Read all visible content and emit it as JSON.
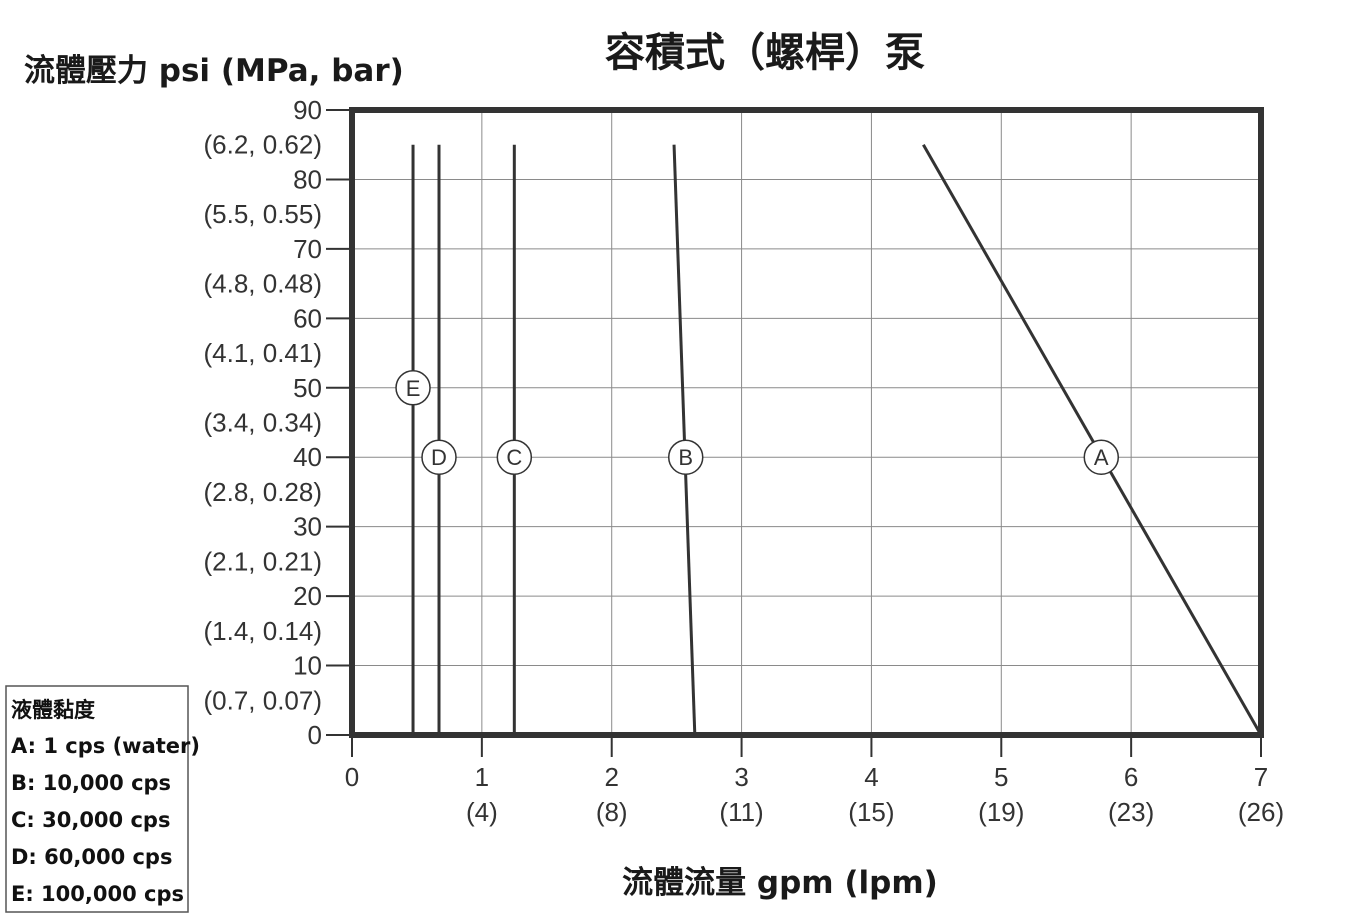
{
  "chart_data": {
    "type": "line",
    "title": "容積式（螺桿）泵",
    "xlabel": "流體流量 gpm (lpm)",
    "ylabel": "流體壓力 psi (MPa, bar)",
    "xlim": [
      0,
      7
    ],
    "ylim": [
      0,
      90
    ],
    "grid": true,
    "x_ticks": [
      {
        "value": 0,
        "label": "0",
        "sub": ""
      },
      {
        "value": 1,
        "label": "1",
        "sub": "(4)"
      },
      {
        "value": 2,
        "label": "2",
        "sub": "(8)"
      },
      {
        "value": 3,
        "label": "3",
        "sub": "(11)"
      },
      {
        "value": 4,
        "label": "4",
        "sub": "(15)"
      },
      {
        "value": 5,
        "label": "5",
        "sub": "(19)"
      },
      {
        "value": 6,
        "label": "6",
        "sub": "(23)"
      },
      {
        "value": 7,
        "label": "7",
        "sub": "(26)"
      }
    ],
    "y_ticks": [
      {
        "value": 0,
        "label": "0"
      },
      {
        "value": 10,
        "label": "10"
      },
      {
        "value": 20,
        "label": "20"
      },
      {
        "value": 30,
        "label": "30"
      },
      {
        "value": 40,
        "label": "40"
      },
      {
        "value": 50,
        "label": "50"
      },
      {
        "value": 60,
        "label": "60"
      },
      {
        "value": 70,
        "label": "70"
      },
      {
        "value": 80,
        "label": "80"
      },
      {
        "value": 90,
        "label": "90"
      }
    ],
    "y_minor_labels": [
      {
        "value": 5,
        "label": "(0.7, 0.07)"
      },
      {
        "value": 15,
        "label": "(1.4, 0.14)"
      },
      {
        "value": 25,
        "label": "(2.1, 0.21)"
      },
      {
        "value": 35,
        "label": "(2.8, 0.28)"
      },
      {
        "value": 45,
        "label": "(3.4, 0.34)"
      },
      {
        "value": 55,
        "label": "(4.1, 0.41)"
      },
      {
        "value": 65,
        "label": "(4.8, 0.48)"
      },
      {
        "value": 75,
        "label": "(5.5, 0.55)"
      },
      {
        "value": 85,
        "label": "(6.2, 0.62)"
      }
    ],
    "series": [
      {
        "name": "A",
        "x": [
          4.4,
          7.0
        ],
        "y": [
          85,
          0
        ],
        "label_at": [
          5.77,
          40
        ]
      },
      {
        "name": "B",
        "x": [
          2.48,
          2.64
        ],
        "y": [
          85,
          0
        ],
        "label_at": [
          2.57,
          40
        ]
      },
      {
        "name": "C",
        "x": [
          1.25,
          1.25
        ],
        "y": [
          85,
          0
        ],
        "label_at": [
          1.25,
          40
        ]
      },
      {
        "name": "D",
        "x": [
          0.67,
          0.67
        ],
        "y": [
          85,
          0
        ],
        "label_at": [
          0.67,
          40
        ]
      },
      {
        "name": "E",
        "x": [
          0.47,
          0.47
        ],
        "y": [
          85,
          0
        ],
        "label_at": [
          0.47,
          50
        ]
      }
    ],
    "legend": {
      "placement": "bottom-left",
      "title": "液體黏度",
      "items": [
        "A: 1 cps (water)",
        "B: 10,000 cps",
        "C: 30,000 cps",
        "D: 60,000 cps",
        "E: 100,000 cps"
      ]
    }
  }
}
